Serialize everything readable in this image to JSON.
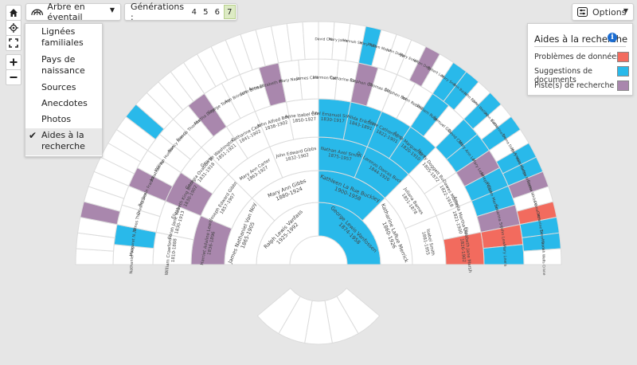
{
  "toolbar": {
    "chart_type_label": "Arbre en éventail",
    "generations_label": "Générations :",
    "generations": [
      "4",
      "5",
      "6",
      "7"
    ],
    "selected_generation": "7",
    "options_label": "Options"
  },
  "side_tools": [
    "home-icon",
    "locate-icon",
    "fullscreen-icon",
    "zoom-in-icon",
    "zoom-out-icon"
  ],
  "view_menu": {
    "items": [
      "Lignées familiales",
      "Pays de naissance",
      "Sources",
      "Anecdotes",
      "Photos",
      "Aides à la recherche"
    ],
    "selected": "Aides à la recherche"
  },
  "legend": {
    "title": "Aides à la recherche",
    "items": [
      {
        "label": "Problèmes de données",
        "color": "#f26b5e"
      },
      {
        "label": "Suggestions de documents",
        "color": "#29b9ea"
      },
      {
        "label": "Piste(s) de recherche",
        "color": "#a987ad"
      }
    ]
  },
  "colors": {
    "data_problem": "#f26b5e",
    "document": "#29b9ea",
    "research": "#a987ad",
    "empty": "#ffffff",
    "gap": "#ebebeb"
  },
  "fan": {
    "generations": [
      {
        "cells": [
          {
            "name": "Ralph Lewis Vanfass",
            "dates": "1925-1992",
            "type": "empty"
          },
          {
            "name": "George Lewis Vanfossen",
            "dates": "1874-1958",
            "type": "document"
          }
        ]
      },
      {
        "cells": [
          {
            "name": "James Nathaniel Van Noy",
            "dates": "1865-1905",
            "type": "empty"
          },
          {
            "name": "Mary Ann Gibbs",
            "dates": "1880-1924",
            "type": "empty"
          },
          {
            "name": "Kathleen La Rue Buckley",
            "dates": "1900-1958",
            "type": "document"
          },
          {
            "name": "Katharine LaRue Merrick",
            "dates": "1860-1926",
            "type": "empty"
          }
        ]
      },
      {
        "cells": [
          {
            "name": "Harriet Adaline Lewis",
            "dates": "1836-1896",
            "type": "research"
          },
          {
            "name": "Joseph Edward Gibbs",
            "dates": "1857-1907",
            "type": "empty"
          },
          {
            "name": "Mary Ann Carter",
            "dates": "1863-1927",
            "type": "empty"
          },
          {
            "name": "John Edward Gibbs",
            "dates": "1832-1902",
            "type": "empty"
          },
          {
            "name": "Nathan Axel Smith",
            "dates": "1875-1957",
            "type": "document"
          },
          {
            "name": "Dr. Lorenzo Dorcas Buckley",
            "dates": "1844-1926",
            "type": "document"
          },
          {
            "name": "Juliana Barnes",
            "dates": "1851-1878",
            "type": "empty"
          },
          {
            "name": "Isabel Smith",
            "dates": "1881-1955",
            "type": "empty"
          }
        ]
      },
      {
        "cells": [
          {
            "name": "William Crawford Lewis",
            "dates": "1810-1888",
            "type": "empty"
          },
          {
            "name": "Sarah Jane Veach",
            "dates": "1830-1913",
            "type": "empty"
          },
          {
            "name": "Elizabeth King Brinkerhoff",
            "dates": "1830-1902",
            "type": "research"
          },
          {
            "name": "Georgia Ovation Nason",
            "dates": "1831-1918",
            "type": "empty"
          },
          {
            "name": "George Washington Gibbs",
            "dates": "1851-1921",
            "type": "empty"
          },
          {
            "name": "Catharine Carter",
            "dates": "1841-1902",
            "type": "empty"
          },
          {
            "name": "John Alfred Boyd",
            "dates": "1838-1902",
            "type": "empty"
          },
          {
            "name": "Anne Isabel Lilley",
            "dates": "1850-1927",
            "type": "empty"
          },
          {
            "name": "Axel Emanuel Smith",
            "dates": "1830-1917",
            "type": "document"
          },
          {
            "name": "Hilda Eriksson",
            "dates": "1843-1891",
            "type": "document"
          },
          {
            "name": "Anne Catherine Costa",
            "dates": "1822-1901",
            "type": "document"
          },
          {
            "name": "Anne Marguerite Smith",
            "dates": "1820-1910",
            "type": "document"
          },
          {
            "name": "Henry Doggett Buckley",
            "dates": "1805-1872",
            "type": "empty"
          },
          {
            "name": "Dawes Mosley",
            "dates": "1822-1918",
            "type": "empty"
          },
          {
            "name": "Amelia Martha Doggett",
            "dates": "1821-1900",
            "type": "empty"
          },
          {
            "name": "Elizabeth Jane Marsh",
            "dates": "1826-1902",
            "type": "data_problem"
          }
        ]
      }
    ],
    "outer_labels": [
      "Nathaniel Van Noy",
      "Margaret N. Thurey",
      "James Thurey",
      "Drusilla Dorris",
      "Benjamin Franklin Lewis",
      "Jonathan Ryon",
      "William Hudson Veach",
      "Nancy Ann Gibbs",
      "Francis Thomas Elliott",
      "Martha Doggett",
      "George Tompkins",
      "Ann Brinkerhoff",
      "John Brinkerhoff",
      "Anne Elizabeth Hollander",
      "Mary Nason",
      "James Carter",
      "Harmon Carter",
      "Catharine Carter",
      "Stephen Gibbs",
      "Thomas Gibbs",
      "Stephen Powell",
      "John Robinson",
      "William Ruggles",
      "Samuel Gibbs",
      "David Carter",
      "Mary Ann Lewis",
      "Mary Lewis",
      "Joseph Carter",
      "William Martin Lewis",
      "Susanna Smith",
      "John Lewis",
      "Mary Lewis"
    ],
    "right_outer_labels": [
      "David Crane",
      "Mary Johnson",
      "Hannah Smith",
      "Mary Tuthill",
      "William Morehouse",
      "John Doggett",
      "Mary Emerson",
      "Hilton Doggett",
      "Robert Lewis",
      "Mary Smith",
      "Ann Barnes",
      "John Barnes",
      "John Wellington",
      "John Buckley",
      "Catherine Doggett",
      "Emma Doggett",
      "Mary Watson",
      "Amelia Martha Doggett",
      "Judge Wheeler Barnes",
      "Emma White Olmsted",
      "Daniel Mosley",
      "Catherine Doggett",
      "Simon Buckley",
      "Hannah Wells Crane"
    ]
  }
}
